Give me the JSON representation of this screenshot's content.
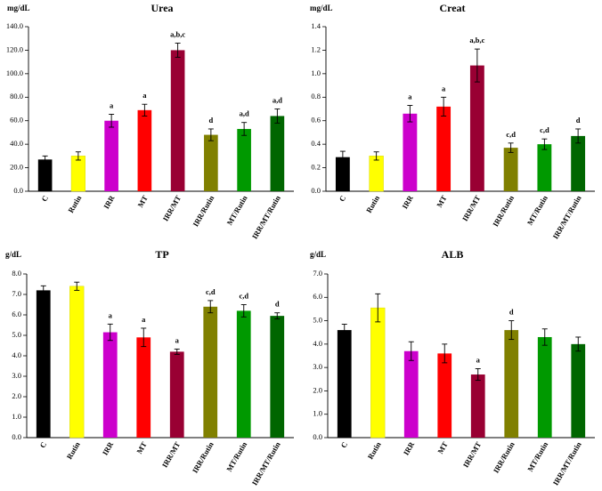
{
  "categories": [
    "C",
    "Rutin",
    "IRR",
    "MT",
    "IRR/MT",
    "IRR/Rutin",
    "MT/Rutin",
    "IRR/MT/Rutin"
  ],
  "colors": [
    "#000000",
    "#ffff00",
    "#cc00cc",
    "#ff0000",
    "#990033",
    "#808000",
    "#009900",
    "#006600"
  ],
  "chart_data": [
    {
      "type": "bar",
      "title": "Urea",
      "ylabel": "mg/dL",
      "ylim": [
        0,
        140
      ],
      "yticks": [
        0,
        20,
        40,
        60,
        80,
        100,
        120,
        140
      ],
      "decimals": 1,
      "categories": [
        "C",
        "Rutin",
        "IRR",
        "MT",
        "IRR/MT",
        "IRR/Rutin",
        "MT/Rutin",
        "IRR/MT/Rutin"
      ],
      "values": [
        27,
        30,
        60,
        69,
        120,
        48,
        53,
        64
      ],
      "errors": [
        3,
        3.5,
        5.5,
        5,
        6,
        5,
        5.5,
        6
      ],
      "annotations": [
        "",
        "",
        "a",
        "a",
        "a,b,c",
        "d",
        "a,d",
        "a,d"
      ]
    },
    {
      "type": "bar",
      "title": "Creat",
      "ylabel": "mg/dL",
      "ylim": [
        0,
        1.4
      ],
      "yticks": [
        0,
        0.2,
        0.4,
        0.6,
        0.8,
        1.0,
        1.2,
        1.4
      ],
      "decimals": 1,
      "categories": [
        "C",
        "Rutin",
        "IRR",
        "MT",
        "IRR/MT",
        "IRR/Rutin",
        "MT/Rutin",
        "IRR/MT/Rutin"
      ],
      "values": [
        0.29,
        0.3,
        0.66,
        0.72,
        1.07,
        0.37,
        0.4,
        0.47
      ],
      "errors": [
        0.05,
        0.035,
        0.07,
        0.08,
        0.14,
        0.04,
        0.045,
        0.06
      ],
      "annotations": [
        "",
        "",
        "a",
        "a",
        "a,b,c",
        "c,d",
        "c,d",
        "d"
      ]
    },
    {
      "type": "bar",
      "title": "TP",
      "ylabel": "g/dL",
      "ylim": [
        0,
        8
      ],
      "yticks": [
        0,
        1,
        2,
        3,
        4,
        5,
        6,
        7,
        8
      ],
      "decimals": 1,
      "categories": [
        "C",
        "Rutin",
        "IRR",
        "MT",
        "IRR/MT",
        "IRR/Rutin",
        "MT/Rutin",
        "IRR/MT/Rutin"
      ],
      "values": [
        7.2,
        7.4,
        5.15,
        4.9,
        4.2,
        6.4,
        6.2,
        5.95
      ],
      "errors": [
        0.22,
        0.2,
        0.4,
        0.45,
        0.13,
        0.3,
        0.3,
        0.15
      ],
      "annotations": [
        "",
        "",
        "a",
        "a",
        "a",
        "c,d",
        "c,d",
        "d"
      ]
    },
    {
      "type": "bar",
      "title": "ALB",
      "ylabel": "g/dL",
      "ylim": [
        0,
        7
      ],
      "yticks": [
        0,
        1,
        2,
        3,
        4,
        5,
        6,
        7
      ],
      "decimals": 1,
      "categories": [
        "C",
        "Rutin",
        "IRR",
        "MT",
        "IRR/MT",
        "IRR/Rutin",
        "MT/Rutin",
        "IRR/MT/Rutin"
      ],
      "values": [
        4.6,
        5.55,
        3.7,
        3.6,
        2.7,
        4.6,
        4.3,
        4.0
      ],
      "errors": [
        0.25,
        0.6,
        0.4,
        0.4,
        0.25,
        0.4,
        0.35,
        0.3
      ],
      "annotations": [
        "",
        "",
        "",
        "",
        "a",
        "d",
        "",
        ""
      ]
    }
  ]
}
